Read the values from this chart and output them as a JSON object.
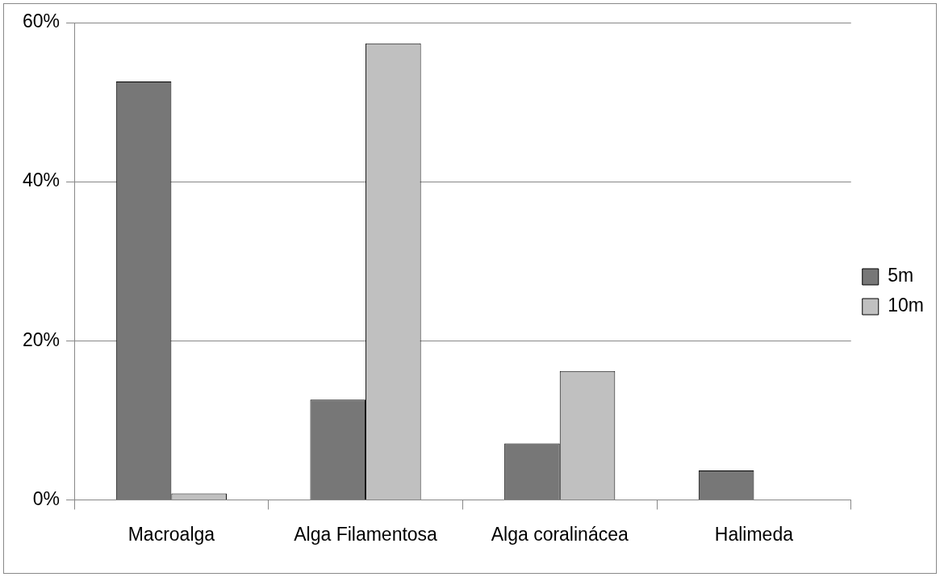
{
  "chart_data": {
    "type": "bar",
    "categories": [
      "Macroalga",
      "Alga Filamentosa",
      "Alga coralinácea",
      "Halimeda"
    ],
    "series": [
      {
        "name": "5m",
        "color": "#777777",
        "values": [
          52.6,
          12.6,
          7.1,
          3.7
        ]
      },
      {
        "name": "10m",
        "color": "#c0c0c0",
        "values": [
          0.8,
          57.4,
          16.2,
          0
        ]
      }
    ],
    "ylim": [
      0,
      60
    ],
    "yticks": [
      {
        "value": 0,
        "label": "0%"
      },
      {
        "value": 20,
        "label": "20%"
      },
      {
        "value": 40,
        "label": "40%"
      },
      {
        "value": 60,
        "label": "60%"
      }
    ],
    "grid": "y",
    "legend": "right"
  }
}
